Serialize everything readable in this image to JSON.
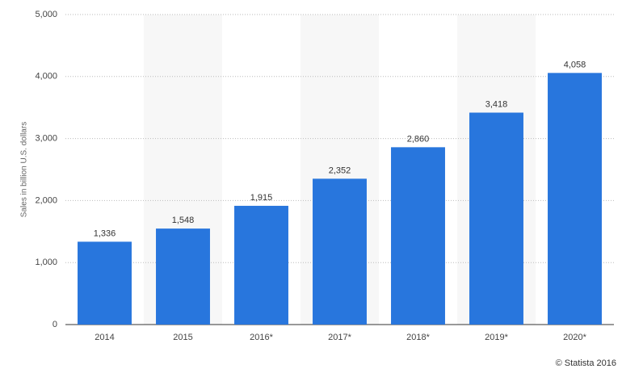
{
  "chart_data": {
    "type": "bar",
    "y_label": "Sales in billion U.S. dollars",
    "credit": "© Statista 2016",
    "categories": [
      "2014",
      "2015",
      "2016*",
      "2017*",
      "2018*",
      "2019*",
      "2020*"
    ],
    "values": [
      1336,
      1548,
      1915,
      2352,
      2860,
      3418,
      4058
    ],
    "value_labels": [
      "1,336",
      "1,548",
      "1,915",
      "2,352",
      "2,860",
      "3,418",
      "4,058"
    ],
    "color": "#2876dd",
    "ylim": [
      0,
      5000
    ],
    "yticks": [
      0,
      {
        "value": 1000,
        "label": "1,000"
      },
      {
        "value": 2000,
        "label": "2,000"
      },
      {
        "value": 3000,
        "label": "3,000"
      },
      {
        "value": 4000,
        "label": "4,000"
      },
      {
        "value": 5000,
        "label": "5,000"
      }
    ],
    "grid": true
  }
}
